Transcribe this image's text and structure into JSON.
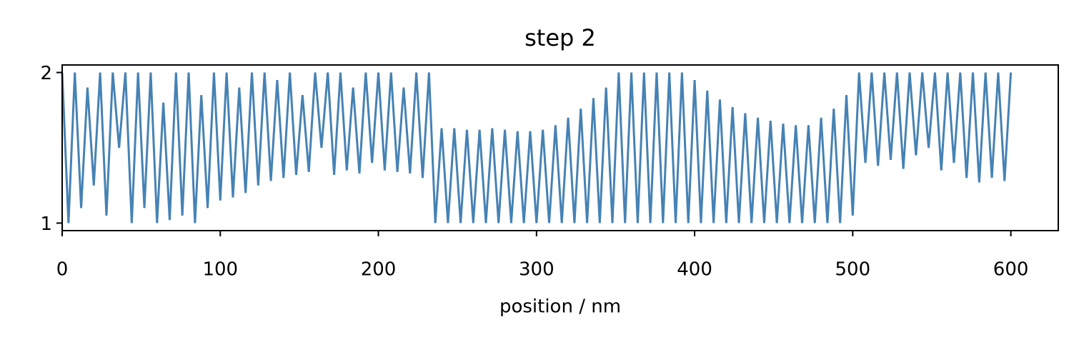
{
  "chart_data": {
    "type": "line",
    "title": "step 2",
    "xlabel": "position / nm",
    "x": [
      0,
      4,
      8,
      12,
      16,
      20,
      24,
      28,
      32,
      36,
      40,
      44,
      48,
      52,
      56,
      60,
      64,
      68,
      72,
      76,
      80,
      84,
      88,
      92,
      96,
      100,
      104,
      108,
      112,
      116,
      120,
      124,
      128,
      132,
      136,
      140,
      144,
      148,
      152,
      156,
      160,
      164,
      168,
      172,
      176,
      180,
      184,
      188,
      192,
      196,
      200,
      204,
      208,
      212,
      216,
      220,
      224,
      228,
      232,
      236,
      240,
      244,
      248,
      252,
      256,
      260,
      264,
      268,
      272,
      276,
      280,
      284,
      288,
      292,
      296,
      300,
      304,
      308,
      312,
      316,
      320,
      324,
      328,
      332,
      336,
      340,
      344,
      348,
      352,
      356,
      360,
      364,
      368,
      372,
      376,
      380,
      384,
      388,
      392,
      396,
      400,
      404,
      408,
      412,
      416,
      420,
      424,
      428,
      432,
      436,
      440,
      444,
      448,
      452,
      456,
      460,
      464,
      468,
      472,
      476,
      480,
      484,
      488,
      492,
      496,
      500,
      504,
      508,
      512,
      516,
      520,
      524,
      528,
      532,
      536,
      540,
      544,
      548,
      552,
      556,
      560,
      564,
      568,
      572,
      576,
      580,
      584,
      588,
      592,
      596,
      600
    ],
    "values": [
      2.0,
      1.0,
      2.0,
      1.1,
      1.9,
      1.25,
      2.0,
      1.05,
      2.0,
      1.5,
      2.0,
      1.0,
      2.0,
      1.1,
      2.0,
      1.0,
      1.8,
      1.02,
      2.0,
      1.05,
      2.0,
      1.0,
      1.85,
      1.1,
      2.0,
      1.15,
      2.0,
      1.17,
      1.9,
      1.2,
      2.0,
      1.25,
      2.0,
      1.28,
      1.95,
      1.3,
      2.0,
      1.32,
      1.85,
      1.34,
      2.0,
      1.5,
      2.0,
      1.32,
      2.0,
      1.35,
      1.9,
      1.33,
      2.0,
      1.4,
      2.0,
      1.35,
      2.0,
      1.34,
      1.9,
      1.33,
      2.0,
      1.3,
      2.0,
      1.0,
      1.63,
      1.0,
      1.63,
      1.0,
      1.62,
      1.0,
      1.62,
      1.0,
      1.63,
      1.0,
      1.62,
      1.0,
      1.61,
      1.0,
      1.61,
      1.0,
      1.62,
      1.0,
      1.65,
      1.0,
      1.7,
      1.0,
      1.76,
      1.0,
      1.83,
      1.0,
      1.9,
      1.0,
      2.0,
      1.0,
      2.0,
      1.0,
      2.0,
      1.0,
      2.0,
      1.0,
      2.0,
      1.0,
      2.0,
      1.0,
      1.95,
      1.0,
      1.88,
      1.0,
      1.82,
      1.0,
      1.77,
      1.0,
      1.73,
      1.0,
      1.7,
      1.0,
      1.68,
      1.0,
      1.66,
      1.0,
      1.65,
      1.0,
      1.65,
      1.0,
      1.7,
      1.0,
      1.76,
      1.0,
      1.85,
      1.05,
      2.0,
      1.4,
      2.0,
      1.38,
      2.0,
      1.42,
      2.0,
      1.36,
      2.0,
      1.45,
      2.0,
      1.5,
      2.0,
      1.35,
      2.0,
      1.4,
      2.0,
      1.3,
      2.0,
      1.27,
      2.0,
      1.3,
      2.0,
      1.28,
      2.0
    ],
    "color": "#4682b4",
    "xlim": [
      0,
      630
    ],
    "xticks": [
      0,
      100,
      200,
      300,
      400,
      500,
      600
    ],
    "ylim": [
      0.95,
      2.05
    ],
    "yticks": [
      1,
      2
    ],
    "grid": false
  }
}
